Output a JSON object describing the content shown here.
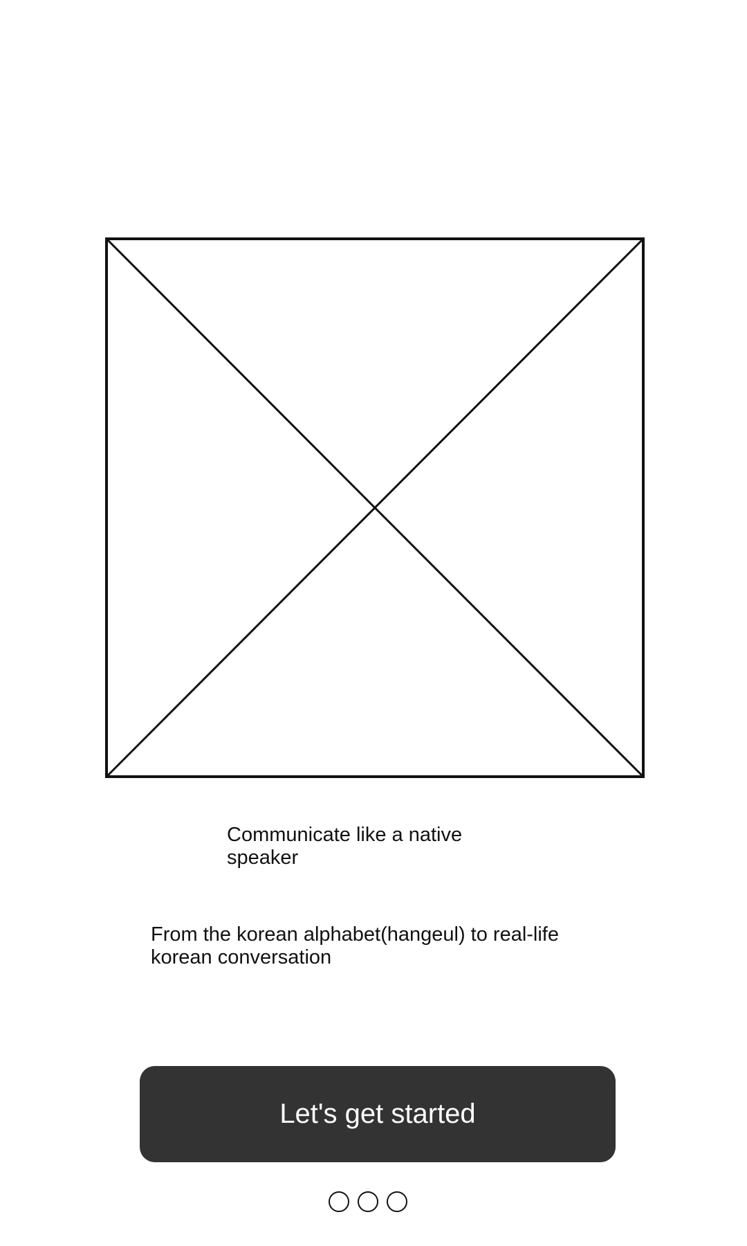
{
  "onboarding": {
    "image": {
      "icon": "image-placeholder-icon"
    },
    "headline": "Communicate like a native speaker",
    "subtext": "From the korean alphabet(hangeul) to real-life korean conversation",
    "cta_label": "Let's get started",
    "pager": {
      "count": 3
    }
  },
  "colors": {
    "background": "#ffffff",
    "text": "#111111",
    "button": "#333333",
    "button_text": "#ffffff"
  }
}
